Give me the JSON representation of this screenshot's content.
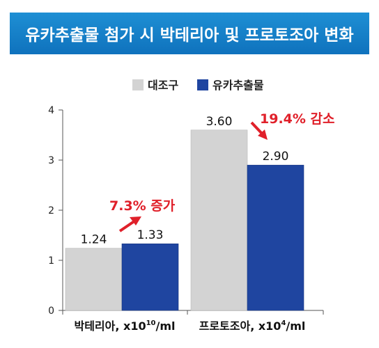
{
  "colors": {
    "title_bg": "#1780c8",
    "control": "#d3d3d3",
    "treatment": "#1f45a0",
    "annotation": "#e0202a",
    "axis": "#555555"
  },
  "chart_data": {
    "type": "bar",
    "title": "유카추출물 첨가 시 박테리아 및 프로토조아 변화",
    "legend_position": "top-center",
    "categories": [
      {
        "label": "박테리아, x10",
        "sup": "10",
        "suffix": "/ml"
      },
      {
        "label": "프로토조아, x10",
        "sup": "4",
        "suffix": "/ml"
      }
    ],
    "series": [
      {
        "name": "대조구",
        "values": [
          1.24,
          3.6
        ],
        "labels": [
          "1.24",
          "3.60"
        ]
      },
      {
        "name": "유카추출물",
        "values": [
          1.33,
          2.9
        ],
        "labels": [
          "1.33",
          "2.90"
        ]
      }
    ],
    "annotations": [
      "7.3% 증가",
      "19.4% 감소"
    ],
    "ylim": [
      0,
      4
    ],
    "yticks": [
      "0",
      "1",
      "2",
      "3",
      "4"
    ],
    "grid": false
  }
}
